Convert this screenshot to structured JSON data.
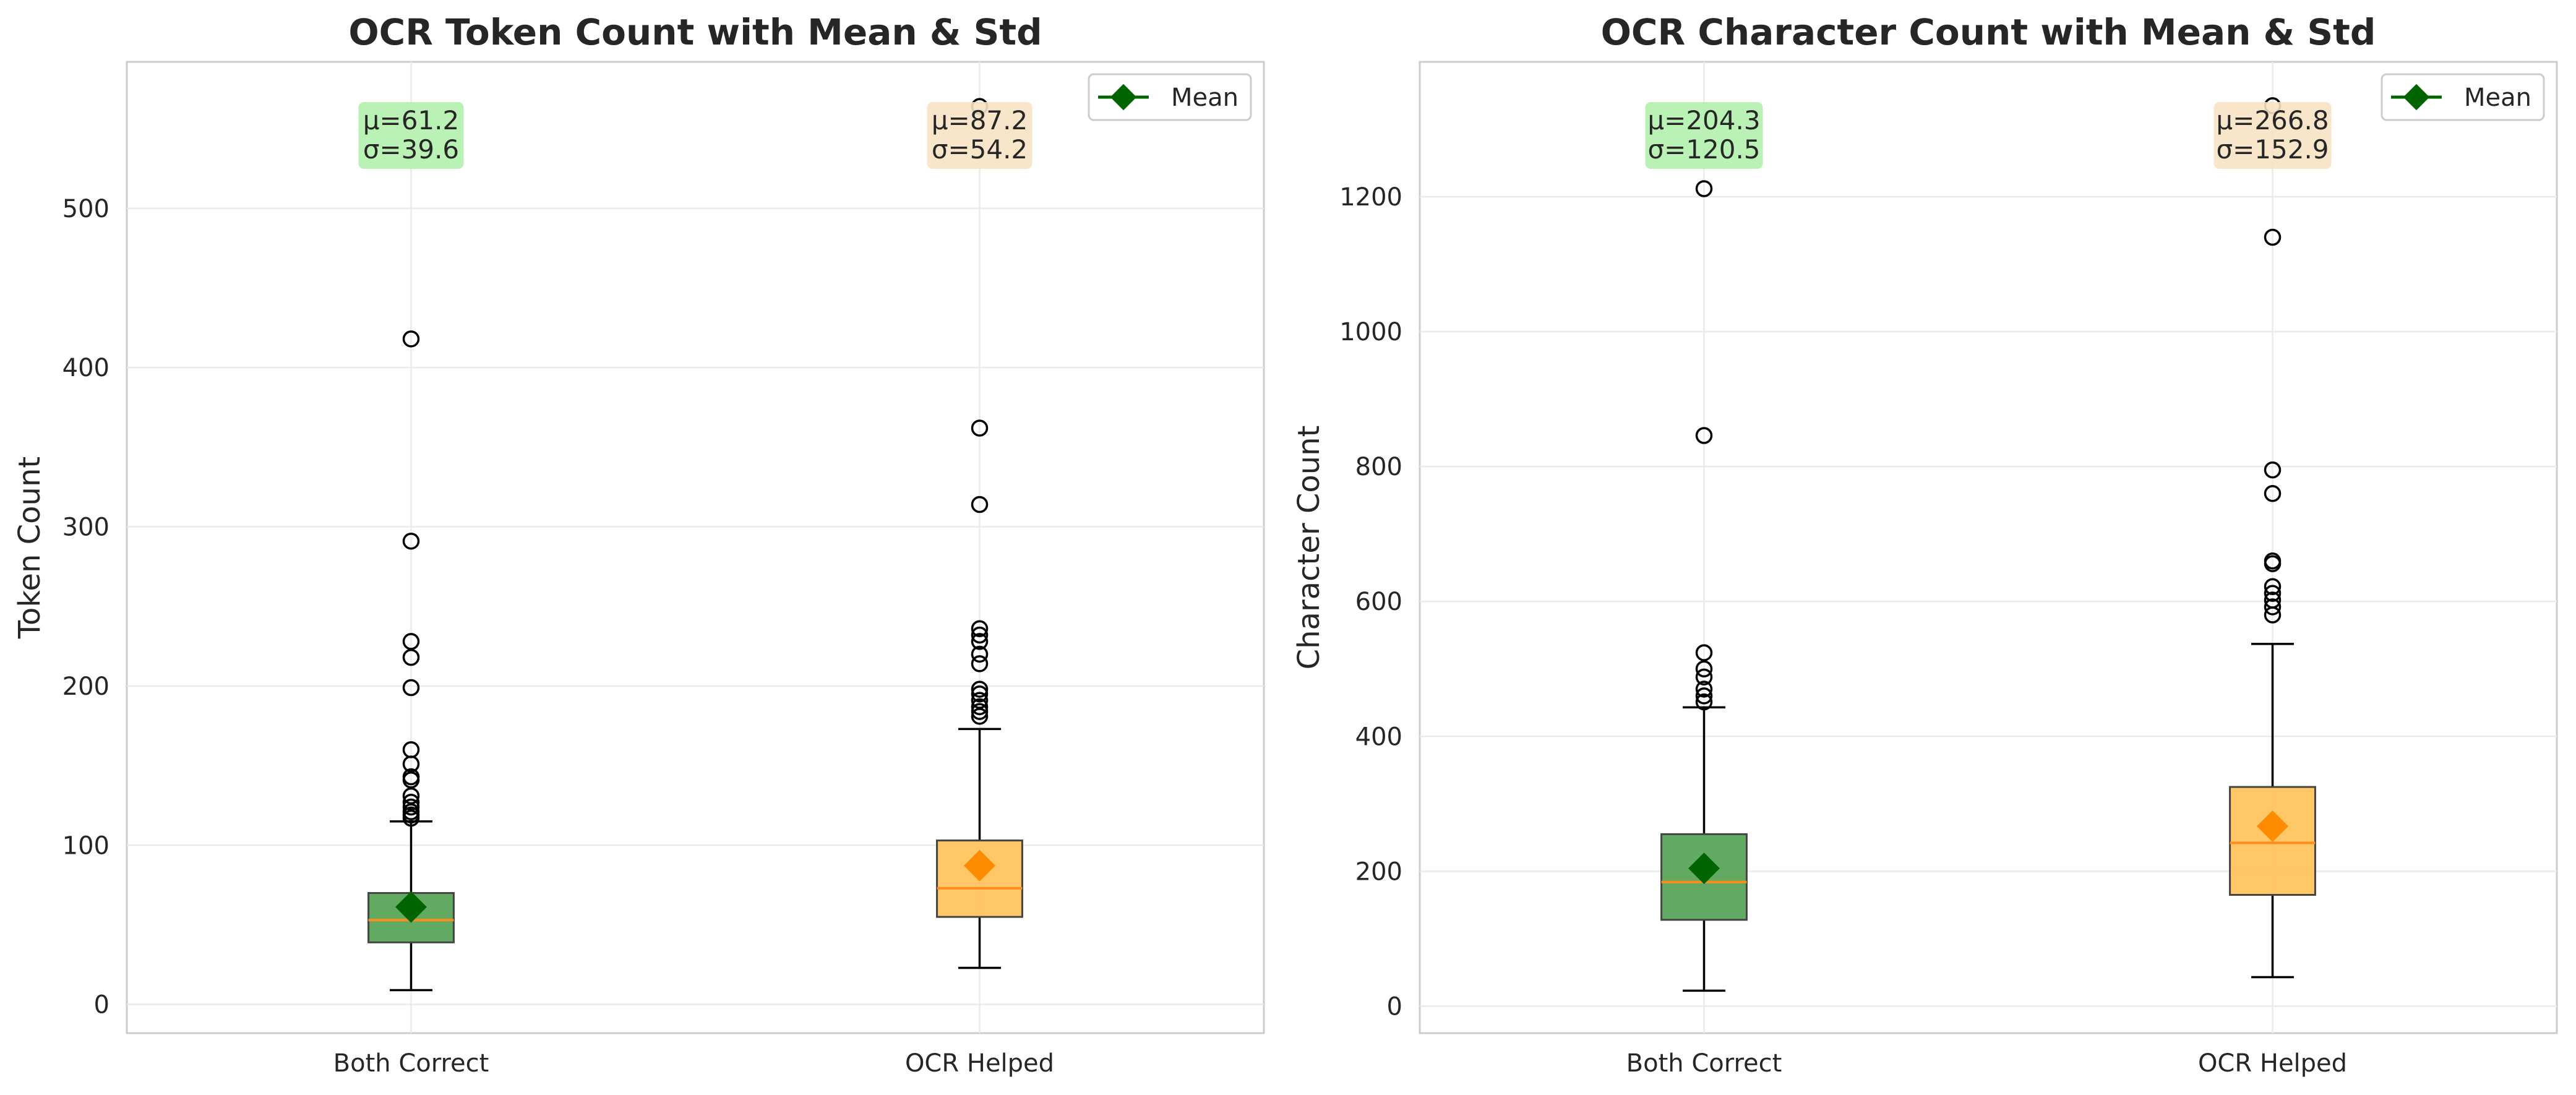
{
  "chart_data": [
    {
      "type": "box",
      "title": "OCR Token Count with Mean & Std",
      "xlabel": "",
      "ylabel": "Token Count",
      "ylim": [
        -18,
        592
      ],
      "yticks": [
        0,
        100,
        200,
        300,
        400,
        500
      ],
      "categories": [
        "Both Correct",
        "OCR Helped"
      ],
      "colors": [
        "#5aa55a",
        "#ffc45e"
      ],
      "mean_color": "#006400",
      "series": [
        {
          "name": "Both Correct",
          "whisker_low": 9,
          "q1": 39,
          "median": 53,
          "q3": 70,
          "whisker_high": 115,
          "mean": 61.2,
          "std": 39.6,
          "outliers": [
            117,
            119,
            121,
            124,
            127,
            131,
            141,
            143,
            151,
            160,
            199,
            218,
            228,
            291,
            418
          ],
          "stat_label": [
            "μ=61.2",
            "σ=39.6"
          ],
          "stat_bg": "#b2f0ac"
        },
        {
          "name": "OCR Helped",
          "whisker_low": 23,
          "q1": 55,
          "median": 73,
          "q3": 103,
          "whisker_high": 173,
          "mean": 87.2,
          "std": 54.2,
          "outliers": [
            181,
            184,
            187,
            191,
            195,
            198,
            214,
            220,
            228,
            232,
            236,
            314,
            362,
            564
          ],
          "stat_label": [
            "μ=87.2",
            "σ=54.2"
          ],
          "stat_bg": "#f6e3c4"
        }
      ],
      "legend": {
        "label": "Mean",
        "position": "top-right"
      },
      "grid": true
    },
    {
      "type": "box",
      "title": "OCR Character Count with Mean & Std",
      "xlabel": "",
      "ylabel": "Character Count",
      "ylim": [
        -40,
        1400
      ],
      "yticks": [
        0,
        200,
        400,
        600,
        800,
        1000,
        1200
      ],
      "categories": [
        "Both Correct",
        "OCR Helped"
      ],
      "colors": [
        "#5aa55a",
        "#ffc45e"
      ],
      "mean_color": "#006400",
      "series": [
        {
          "name": "Both Correct",
          "whisker_low": 23,
          "q1": 128,
          "median": 184,
          "q3": 255,
          "whisker_high": 443,
          "mean": 204.3,
          "std": 120.5,
          "outliers": [
            451,
            460,
            470,
            488,
            500,
            524,
            846,
            1212
          ],
          "stat_label": [
            "μ=204.3",
            "σ=120.5"
          ],
          "stat_bg": "#b2f0ac"
        },
        {
          "name": "OCR Helped",
          "whisker_low": 43,
          "q1": 165,
          "median": 242,
          "q3": 325,
          "whisker_high": 537,
          "mean": 266.8,
          "std": 152.9,
          "outliers": [
            580,
            592,
            602,
            612,
            622,
            656,
            660,
            760,
            795,
            1140,
            1335
          ],
          "stat_label": [
            "μ=266.8",
            "σ=152.9"
          ],
          "stat_bg": "#f6e3c4"
        }
      ],
      "legend": {
        "label": "Mean",
        "position": "top-right"
      },
      "grid": true
    }
  ]
}
